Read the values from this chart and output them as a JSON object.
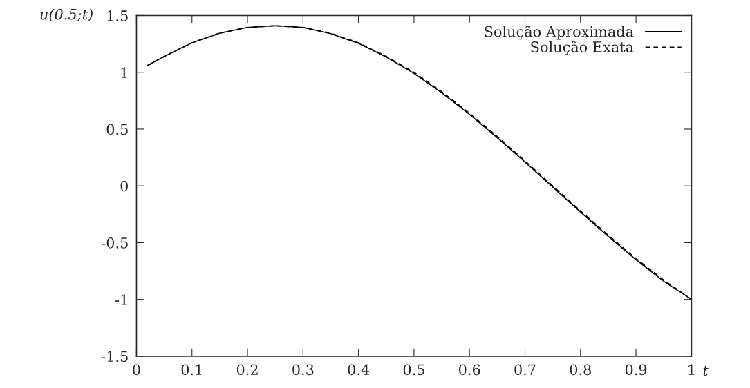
{
  "chart_data": {
    "type": "line",
    "xlabel": "t",
    "ylabel": "u(0.5;t)",
    "xlim": [
      0,
      1
    ],
    "ylim": [
      -1.5,
      1.5
    ],
    "xticks": [
      0,
      0.1,
      0.2,
      0.3,
      0.4,
      0.5,
      0.6,
      0.7,
      0.8,
      0.9,
      1
    ],
    "yticks": [
      {
        "value": -1.5,
        "label": "-1.5"
      },
      {
        "value": -1,
        "label": "-1"
      },
      {
        "value": -0.5,
        "label": "-0.5"
      },
      0,
      0.5,
      1,
      1.5
    ],
    "x": [
      0.02,
      0.05,
      0.1,
      0.15,
      0.2,
      0.25,
      0.3,
      0.35,
      0.4,
      0.45,
      0.5,
      0.55,
      0.6,
      0.65,
      0.7,
      0.75,
      0.8,
      0.85,
      0.9,
      0.95,
      1.0
    ],
    "series": [
      {
        "name": "Solução Aproximada",
        "color": "#000000",
        "line_style": "solid",
        "values": [
          1.06,
          1.14,
          1.26,
          1.345,
          1.395,
          1.41,
          1.395,
          1.34,
          1.255,
          1.135,
          0.99,
          0.82,
          0.63,
          0.425,
          0.21,
          -0.01,
          -0.23,
          -0.445,
          -0.65,
          -0.84,
          -1.0
        ]
      },
      {
        "name": "Solução Exata",
        "color": "#000000",
        "line_style": "dashed",
        "values": [
          1.06,
          1.14,
          1.26,
          1.345,
          1.395,
          1.41,
          1.395,
          1.345,
          1.26,
          1.14,
          1.0,
          0.83,
          0.64,
          0.435,
          0.22,
          0.0,
          -0.22,
          -0.435,
          -0.64,
          -0.83,
          -1.0
        ]
      }
    ],
    "legend": "top right",
    "grid": false
  }
}
